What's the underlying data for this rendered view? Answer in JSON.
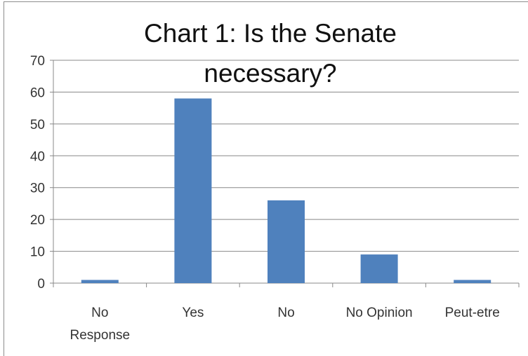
{
  "chart_data": {
    "type": "bar",
    "title_lines": [
      "Chart 1: Is the Senate",
      "necessary?"
    ],
    "categories": [
      "No Response",
      "Yes",
      "No",
      "No Opinion",
      "Peut-etre"
    ],
    "category_label_lines": [
      [
        "No",
        "Response"
      ],
      [
        "Yes"
      ],
      [
        "No"
      ],
      [
        "No Opinion"
      ],
      [
        "Peut-etre"
      ]
    ],
    "values": [
      1,
      58,
      26,
      9,
      1
    ],
    "ylim": [
      0,
      70
    ],
    "yticks": [
      0,
      10,
      20,
      30,
      40,
      50,
      60,
      70
    ],
    "grid": true,
    "legend": "none",
    "bar_color": "#4f81bd",
    "grid_color": "#888888"
  }
}
